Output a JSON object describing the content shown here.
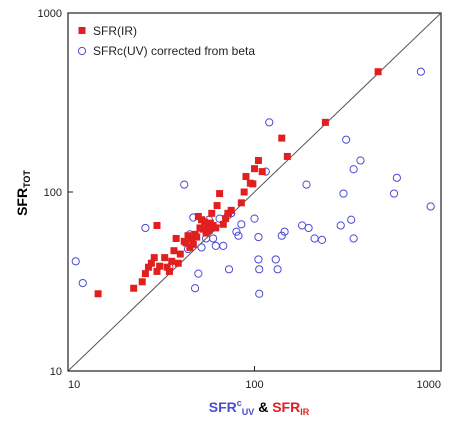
{
  "colors": {
    "ir": "#e21f1f",
    "uv": "#4b4bd6",
    "axis": "#222222",
    "diagonal": "#555555"
  },
  "chart_data": {
    "type": "scatter",
    "scale": "log",
    "xlim": [
      10,
      1000
    ],
    "ylim": [
      10,
      1000
    ],
    "x_ticks": [
      "10",
      "100",
      "1000"
    ],
    "y_ticks": [
      "10",
      "100",
      "1000"
    ],
    "ylabel": {
      "main": "SFR",
      "sub": "TOT"
    },
    "xlabel": {
      "uv_main": "SFR",
      "uv_sup": "c",
      "uv_sub": "UV",
      "amp": " & ",
      "ir_main": "SFR",
      "ir_sub": "IR"
    },
    "legend_position": "top-left",
    "diagonal": [
      [
        10,
        10
      ],
      [
        1000,
        1000
      ]
    ],
    "series": [
      {
        "name": "SFR(IR)",
        "marker": "filled-square",
        "color": "#e21f1f",
        "points": [
          [
            14.5,
            27
          ],
          [
            22.5,
            29
          ],
          [
            25,
            31.5
          ],
          [
            26,
            35
          ],
          [
            27,
            38
          ],
          [
            28,
            40
          ],
          [
            29,
            43
          ],
          [
            30,
            36
          ],
          [
            30,
            65
          ],
          [
            31,
            38.5
          ],
          [
            33,
            43
          ],
          [
            34,
            38
          ],
          [
            35,
            36
          ],
          [
            36,
            41
          ],
          [
            37,
            47
          ],
          [
            38,
            55
          ],
          [
            39,
            40
          ],
          [
            40,
            45
          ],
          [
            42,
            53
          ],
          [
            43,
            52
          ],
          [
            44,
            57
          ],
          [
            45,
            49
          ],
          [
            46,
            55
          ],
          [
            47,
            51
          ],
          [
            48,
            58
          ],
          [
            49,
            56
          ],
          [
            50,
            73
          ],
          [
            51,
            63
          ],
          [
            52,
            70
          ],
          [
            53,
            62
          ],
          [
            54,
            68
          ],
          [
            55,
            59
          ],
          [
            56,
            64
          ],
          [
            57,
            61
          ],
          [
            58,
            67
          ],
          [
            59,
            76
          ],
          [
            60,
            65
          ],
          [
            62,
            63
          ],
          [
            63,
            84
          ],
          [
            65,
            98
          ],
          [
            68,
            66
          ],
          [
            70,
            71
          ],
          [
            72,
            76
          ],
          [
            75,
            79
          ],
          [
            85,
            87
          ],
          [
            88,
            100
          ],
          [
            90,
            122
          ],
          [
            95,
            112
          ],
          [
            98,
            111
          ],
          [
            100,
            135
          ],
          [
            105,
            150
          ],
          [
            110,
            130
          ],
          [
            140,
            200
          ],
          [
            150,
            158
          ],
          [
            240,
            245
          ],
          [
            460,
            470
          ]
        ]
      },
      {
        "name": "SFRc(UV) corrected from beta",
        "marker": "open-circle",
        "color": "#4b4bd6",
        "points": [
          [
            11,
            41
          ],
          [
            12,
            31
          ],
          [
            26,
            63
          ],
          [
            35,
            38
          ],
          [
            42,
            110
          ],
          [
            44,
            48
          ],
          [
            45,
            58
          ],
          [
            47,
            72
          ],
          [
            48,
            29
          ],
          [
            50,
            35
          ],
          [
            52,
            49
          ],
          [
            55,
            55
          ],
          [
            57,
            70
          ],
          [
            60,
            55
          ],
          [
            62,
            50
          ],
          [
            65,
            71
          ],
          [
            68,
            50
          ],
          [
            72,
            74
          ],
          [
            73,
            37
          ],
          [
            75,
            76
          ],
          [
            80,
            60
          ],
          [
            82,
            57
          ],
          [
            85,
            66
          ],
          [
            100,
            71
          ],
          [
            105,
            42
          ],
          [
            105,
            56
          ],
          [
            106,
            37
          ],
          [
            106,
            27
          ],
          [
            115,
            130
          ],
          [
            120,
            245
          ],
          [
            130,
            42
          ],
          [
            133,
            37
          ],
          [
            140,
            57
          ],
          [
            145,
            60
          ],
          [
            180,
            65
          ],
          [
            190,
            110
          ],
          [
            195,
            63
          ],
          [
            210,
            55
          ],
          [
            230,
            54
          ],
          [
            290,
            65
          ],
          [
            300,
            98
          ],
          [
            310,
            196
          ],
          [
            330,
            70
          ],
          [
            340,
            55
          ],
          [
            340,
            134
          ],
          [
            370,
            150
          ],
          [
            560,
            98
          ],
          [
            580,
            120
          ],
          [
            780,
            470
          ],
          [
            880,
            83
          ]
        ]
      }
    ]
  }
}
